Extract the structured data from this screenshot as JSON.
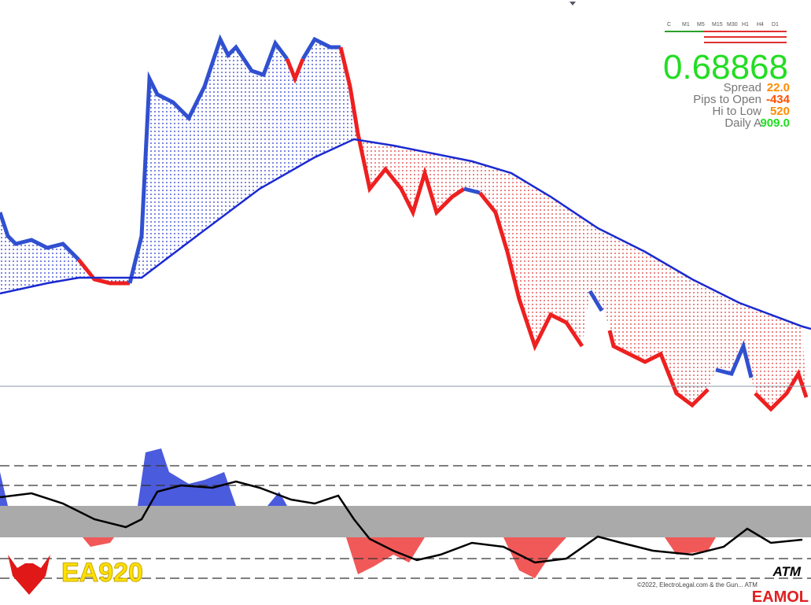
{
  "header": {
    "price": "0.68868"
  },
  "timeframes": [
    "C",
    "M1",
    "M5",
    "M15",
    "M30",
    "H1",
    "H4",
    "D1"
  ],
  "stats": [
    {
      "label": "Spread",
      "value": "22.0"
    },
    {
      "label": "Pips to Open",
      "value": "-434"
    },
    {
      "label": "Hi to Low",
      "value": "520"
    },
    {
      "label": "Daily A",
      "value": "909.0"
    }
  ],
  "branding": {
    "logo": "EA920",
    "indicator": "ATM",
    "watermark": "EAMOL",
    "copyright": "©2022, ElectroLegal.com & the Gun... ATM"
  }
}
